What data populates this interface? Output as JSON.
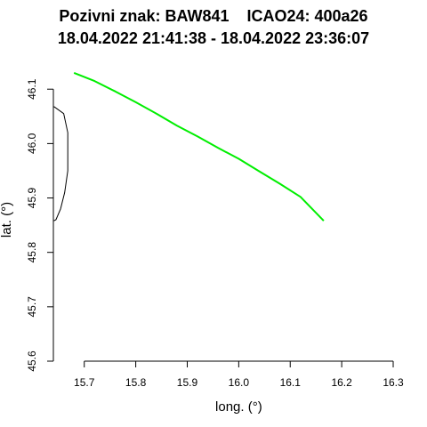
{
  "chart_data": {
    "type": "line",
    "title": "Pozivni znak: BAW841    ICAO24: 400a26",
    "subtitle": "18.04.2022 21:41:38 - 18.04.2022 23:36:07",
    "xlabel": "long. (°)",
    "ylabel": "lat. (°)",
    "xlim": [
      15.64,
      16.3
    ],
    "ylim": [
      45.6,
      46.12
    ],
    "xticks": [
      15.7,
      15.8,
      15.9,
      16.0,
      16.1,
      16.2,
      16.3
    ],
    "xtick_labels": [
      "15.7",
      "15.8",
      "15.9",
      "16.0",
      "16.1",
      "16.2",
      "16.3"
    ],
    "yticks": [
      45.6,
      45.7,
      45.8,
      45.9,
      46.0,
      46.1
    ],
    "ytick_labels": [
      "45.6",
      "45.7",
      "45.8",
      "45.9",
      "46.0",
      "46.1"
    ],
    "grid": false,
    "series": [
      {
        "color": "#00ee00",
        "x": [
          15.68,
          15.72,
          15.76,
          15.8,
          15.84,
          15.88,
          15.92,
          15.96,
          16.0,
          16.04,
          16.08,
          16.12,
          16.165
        ],
        "y": [
          46.13,
          46.115,
          46.096,
          46.076,
          46.055,
          46.033,
          46.013,
          45.992,
          45.972,
          45.949,
          45.926,
          45.902,
          45.858
        ]
      }
    ],
    "border": {
      "color": "#000000",
      "x": [
        15.641,
        15.66,
        15.668,
        15.668,
        15.662,
        15.654,
        15.645,
        15.641
      ],
      "y": [
        46.068,
        46.055,
        46.02,
        45.95,
        45.91,
        45.88,
        45.86,
        45.858
      ]
    }
  }
}
